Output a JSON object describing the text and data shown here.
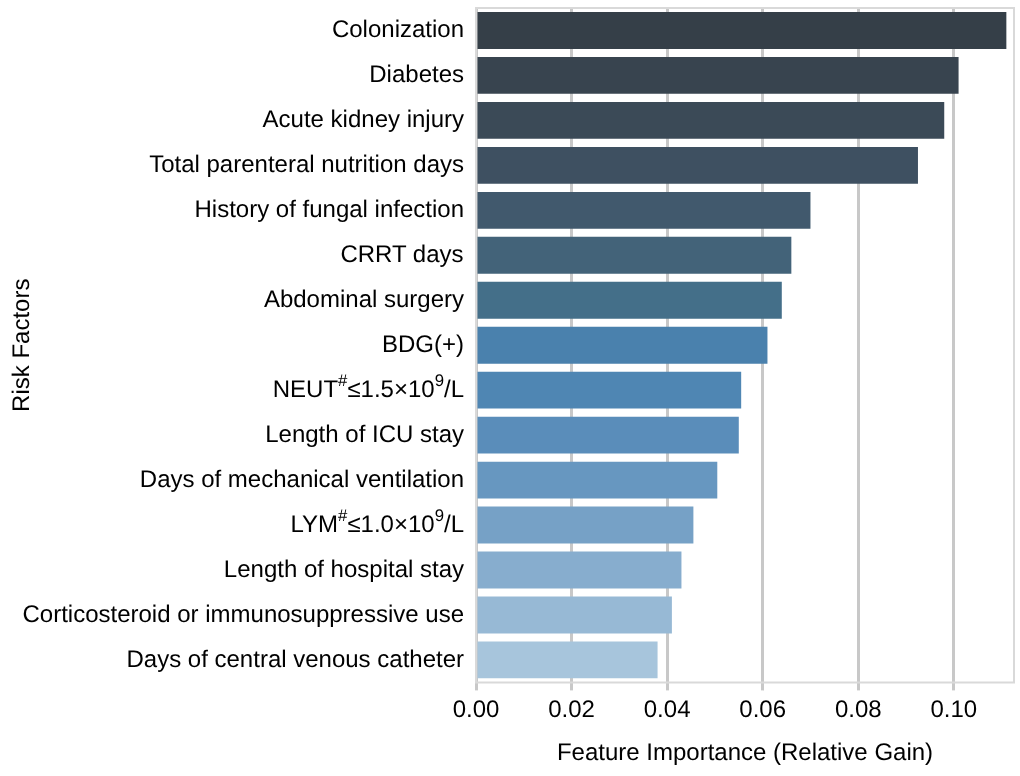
{
  "chart_data": {
    "type": "bar",
    "orientation": "horizontal",
    "xlabel": "Feature Importance (Relative Gain)",
    "ylabel": "Risk Factors",
    "categories": [
      "Colonization",
      "Diabetes",
      "Acute kidney injury",
      "Total parenteral nutrition days",
      "History of fungal infection",
      "CRRT days",
      "Abdominal surgery",
      "BDG(+)",
      "NEUT$^{#}$≤1.5×10$^{9}$/L",
      "Length of ICU stay",
      "Days of mechanical ventilation",
      "LYM$^{#}$≤1.0×10$^{9}$/L",
      "Length of hospital stay",
      "Corticosteroid or immunosuppressive use",
      "Days of central venous catheter"
    ],
    "values": [
      0.111,
      0.101,
      0.098,
      0.0925,
      0.07,
      0.066,
      0.064,
      0.061,
      0.0555,
      0.055,
      0.0505,
      0.0455,
      0.043,
      0.041,
      0.038
    ],
    "colors": [
      "#353f48",
      "#38444f",
      "#3b4a57",
      "#3e5061",
      "#41596d",
      "#436379",
      "#446f89",
      "#4a81ad",
      "#4f86b3",
      "#5a8dba",
      "#6797c0",
      "#76a1c6",
      "#87adce",
      "#97b9d5",
      "#a7c5dc"
    ],
    "xlim": [
      0,
      0.1126
    ],
    "xticks": [
      {
        "value": 0,
        "label": "0.00"
      },
      {
        "value": 0.02,
        "label": "0.02"
      },
      {
        "value": 0.04,
        "label": "0.04"
      },
      {
        "value": 0.06,
        "label": "0.06"
      },
      {
        "value": 0.08,
        "label": "0.08"
      },
      {
        "value": 0.1,
        "label": "0.10"
      }
    ],
    "grid": "x"
  }
}
